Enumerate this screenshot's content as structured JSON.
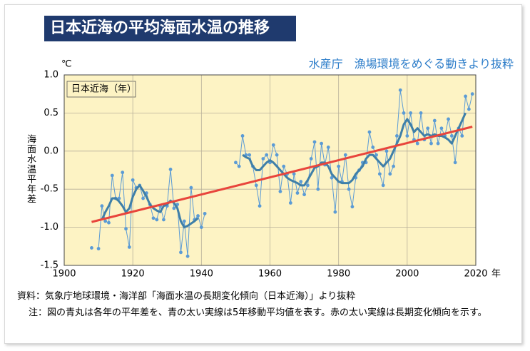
{
  "chart_data": {
    "type": "line",
    "title": "日本近海の平均海面水温の推移",
    "subtitle": "水産庁　漁場環境をめぐる動きより抜粋",
    "y_unit": "℃",
    "ylabel": "海面水温平年差",
    "x_unit": "年",
    "inner_label": "日本近海（年）",
    "source": "資料：気象庁地球環境・海洋部「海面水温の長期変化傾向（日本近海）」より抜粋",
    "note": "注：図の青丸は各年の平年差を、青の太い実線は5年移動平均値を表す。赤の太い実線は長期変化傾向を示す。",
    "xlim": [
      1900,
      2020
    ],
    "xticks": [
      1900,
      1920,
      1940,
      1960,
      1980,
      2000,
      2020
    ],
    "ylim": [
      -1.5,
      1.0
    ],
    "yticks": [
      {
        "value": 1.0,
        "label": "1.0"
      },
      0.5,
      {
        "value": 0.0,
        "label": "0.0"
      },
      -0.5,
      {
        "value": -1.0,
        "label": "-1.0"
      },
      -1.5
    ],
    "grid": true,
    "series": [
      {
        "color": "#5b9bd5",
        "markers": true,
        "width": 1,
        "x": [
          1908,
          1909,
          1910,
          1911,
          1912,
          1913,
          1914,
          1915,
          1916,
          1917,
          1918,
          1919,
          1920,
          1921,
          1922,
          1923,
          1924,
          1925,
          1926,
          1927,
          1928,
          1929,
          1930,
          1931,
          1932,
          1933,
          1934,
          1935,
          1936,
          1937,
          1938,
          1939,
          1940,
          1941,
          1945,
          1950,
          1951,
          1952,
          1953,
          1954,
          1955,
          1956,
          1957,
          1958,
          1959,
          1960,
          1961,
          1962,
          1963,
          1964,
          1965,
          1966,
          1967,
          1968,
          1969,
          1970,
          1971,
          1972,
          1973,
          1974,
          1975,
          1976,
          1977,
          1978,
          1979,
          1980,
          1981,
          1982,
          1983,
          1984,
          1985,
          1986,
          1987,
          1988,
          1989,
          1990,
          1991,
          1992,
          1993,
          1994,
          1995,
          1996,
          1997,
          1998,
          1999,
          2000,
          2001,
          2002,
          2003,
          2004,
          2005,
          2006,
          2007,
          2008,
          2009,
          2010,
          2011,
          2012,
          2013,
          2014,
          2015,
          2016,
          2017,
          2018,
          2019
        ],
        "values": [
          -1.27,
          null,
          -1.28,
          -0.72,
          -0.92,
          -0.94,
          -0.32,
          -0.62,
          -0.62,
          -0.28,
          -1.02,
          -1.26,
          -0.38,
          -0.48,
          -0.45,
          -0.62,
          -0.55,
          -0.7,
          -0.88,
          -0.9,
          -0.72,
          -0.9,
          -0.72,
          -0.24,
          -0.75,
          -0.7,
          -1.33,
          -0.92,
          -1.38,
          -0.48,
          -0.9,
          -0.85,
          -1.0,
          -0.82,
          null,
          -0.15,
          -0.2,
          0.2,
          -0.05,
          -0.05,
          -0.2,
          -0.45,
          -0.72,
          -0.1,
          -0.05,
          -0.15,
          0.08,
          -0.05,
          -0.53,
          -0.2,
          -0.3,
          -0.68,
          -0.3,
          -0.55,
          -0.4,
          -0.57,
          -0.45,
          -0.1,
          0.12,
          -0.5,
          0.1,
          -0.18,
          0.05,
          -0.35,
          -0.8,
          -0.2,
          -0.4,
          -0.05,
          -0.5,
          -0.73,
          -0.35,
          -0.25,
          -0.15,
          -0.15,
          0.25,
          0.05,
          -0.05,
          -0.3,
          -0.45,
          0.0,
          -0.3,
          -0.2,
          0.2,
          0.8,
          0.5,
          0.2,
          0.5,
          0.15,
          0.1,
          0.5,
          0.15,
          0.3,
          0.1,
          0.4,
          0.1,
          0.3,
          0.2,
          0.42,
          0.2,
          -0.15,
          0.3,
          0.2,
          0.72,
          0.55,
          0.75
        ]
      },
      {
        "color": "#3f7fa8",
        "markers": false,
        "width": 3,
        "x": [
          1911,
          1912,
          1913,
          1914,
          1915,
          1916,
          1917,
          1918,
          1919,
          1920,
          1921,
          1922,
          1923,
          1924,
          1925,
          1926,
          1927,
          1928,
          1929,
          1930,
          1931,
          1932,
          1933,
          1934,
          1935,
          1936,
          1937,
          1938,
          1939,
          1945,
          1952,
          1953,
          1954,
          1955,
          1956,
          1957,
          1958,
          1959,
          1960,
          1961,
          1962,
          1963,
          1964,
          1965,
          1966,
          1967,
          1968,
          1969,
          1970,
          1971,
          1972,
          1973,
          1974,
          1975,
          1976,
          1977,
          1978,
          1979,
          1980,
          1981,
          1982,
          1983,
          1984,
          1985,
          1986,
          1987,
          1988,
          1989,
          1990,
          1991,
          1992,
          1993,
          1994,
          1995,
          1996,
          1997,
          1998,
          1999,
          2000,
          2001,
          2002,
          2003,
          2004,
          2005,
          2006,
          2007,
          2008,
          2009,
          2010,
          2011,
          2012,
          2013,
          2014,
          2015,
          2016,
          2017
        ],
        "values": [
          -0.9,
          -0.8,
          -0.72,
          -0.62,
          -0.62,
          -0.66,
          -0.72,
          -0.8,
          -0.75,
          -0.6,
          -0.5,
          -0.45,
          -0.52,
          -0.6,
          -0.7,
          -0.75,
          -0.78,
          -0.8,
          -0.72,
          -0.7,
          -0.65,
          -0.68,
          -0.75,
          -0.92,
          -1.0,
          -0.98,
          -0.95,
          -0.92,
          -0.88,
          null,
          -0.05,
          -0.08,
          -0.1,
          -0.2,
          -0.25,
          -0.25,
          -0.2,
          -0.15,
          -0.12,
          -0.15,
          -0.2,
          -0.25,
          -0.3,
          -0.35,
          -0.38,
          -0.4,
          -0.42,
          -0.45,
          -0.45,
          -0.38,
          -0.3,
          -0.22,
          -0.2,
          -0.15,
          -0.15,
          -0.2,
          -0.3,
          -0.35,
          -0.4,
          -0.42,
          -0.42,
          -0.42,
          -0.38,
          -0.3,
          -0.25,
          -0.2,
          -0.1,
          -0.05,
          -0.05,
          -0.1,
          -0.15,
          -0.2,
          -0.15,
          -0.1,
          0.0,
          0.1,
          0.2,
          0.35,
          0.42,
          0.35,
          0.25,
          0.3,
          0.25,
          0.2,
          0.22,
          0.2,
          0.22,
          0.2,
          0.2,
          0.18,
          0.15,
          0.1,
          0.2,
          0.3,
          0.4,
          0.5
        ]
      },
      {
        "color": "#e8453c",
        "markers": false,
        "width": 3,
        "x": [
          1908,
          2019
        ],
        "values": [
          -0.93,
          0.32
        ]
      }
    ]
  }
}
